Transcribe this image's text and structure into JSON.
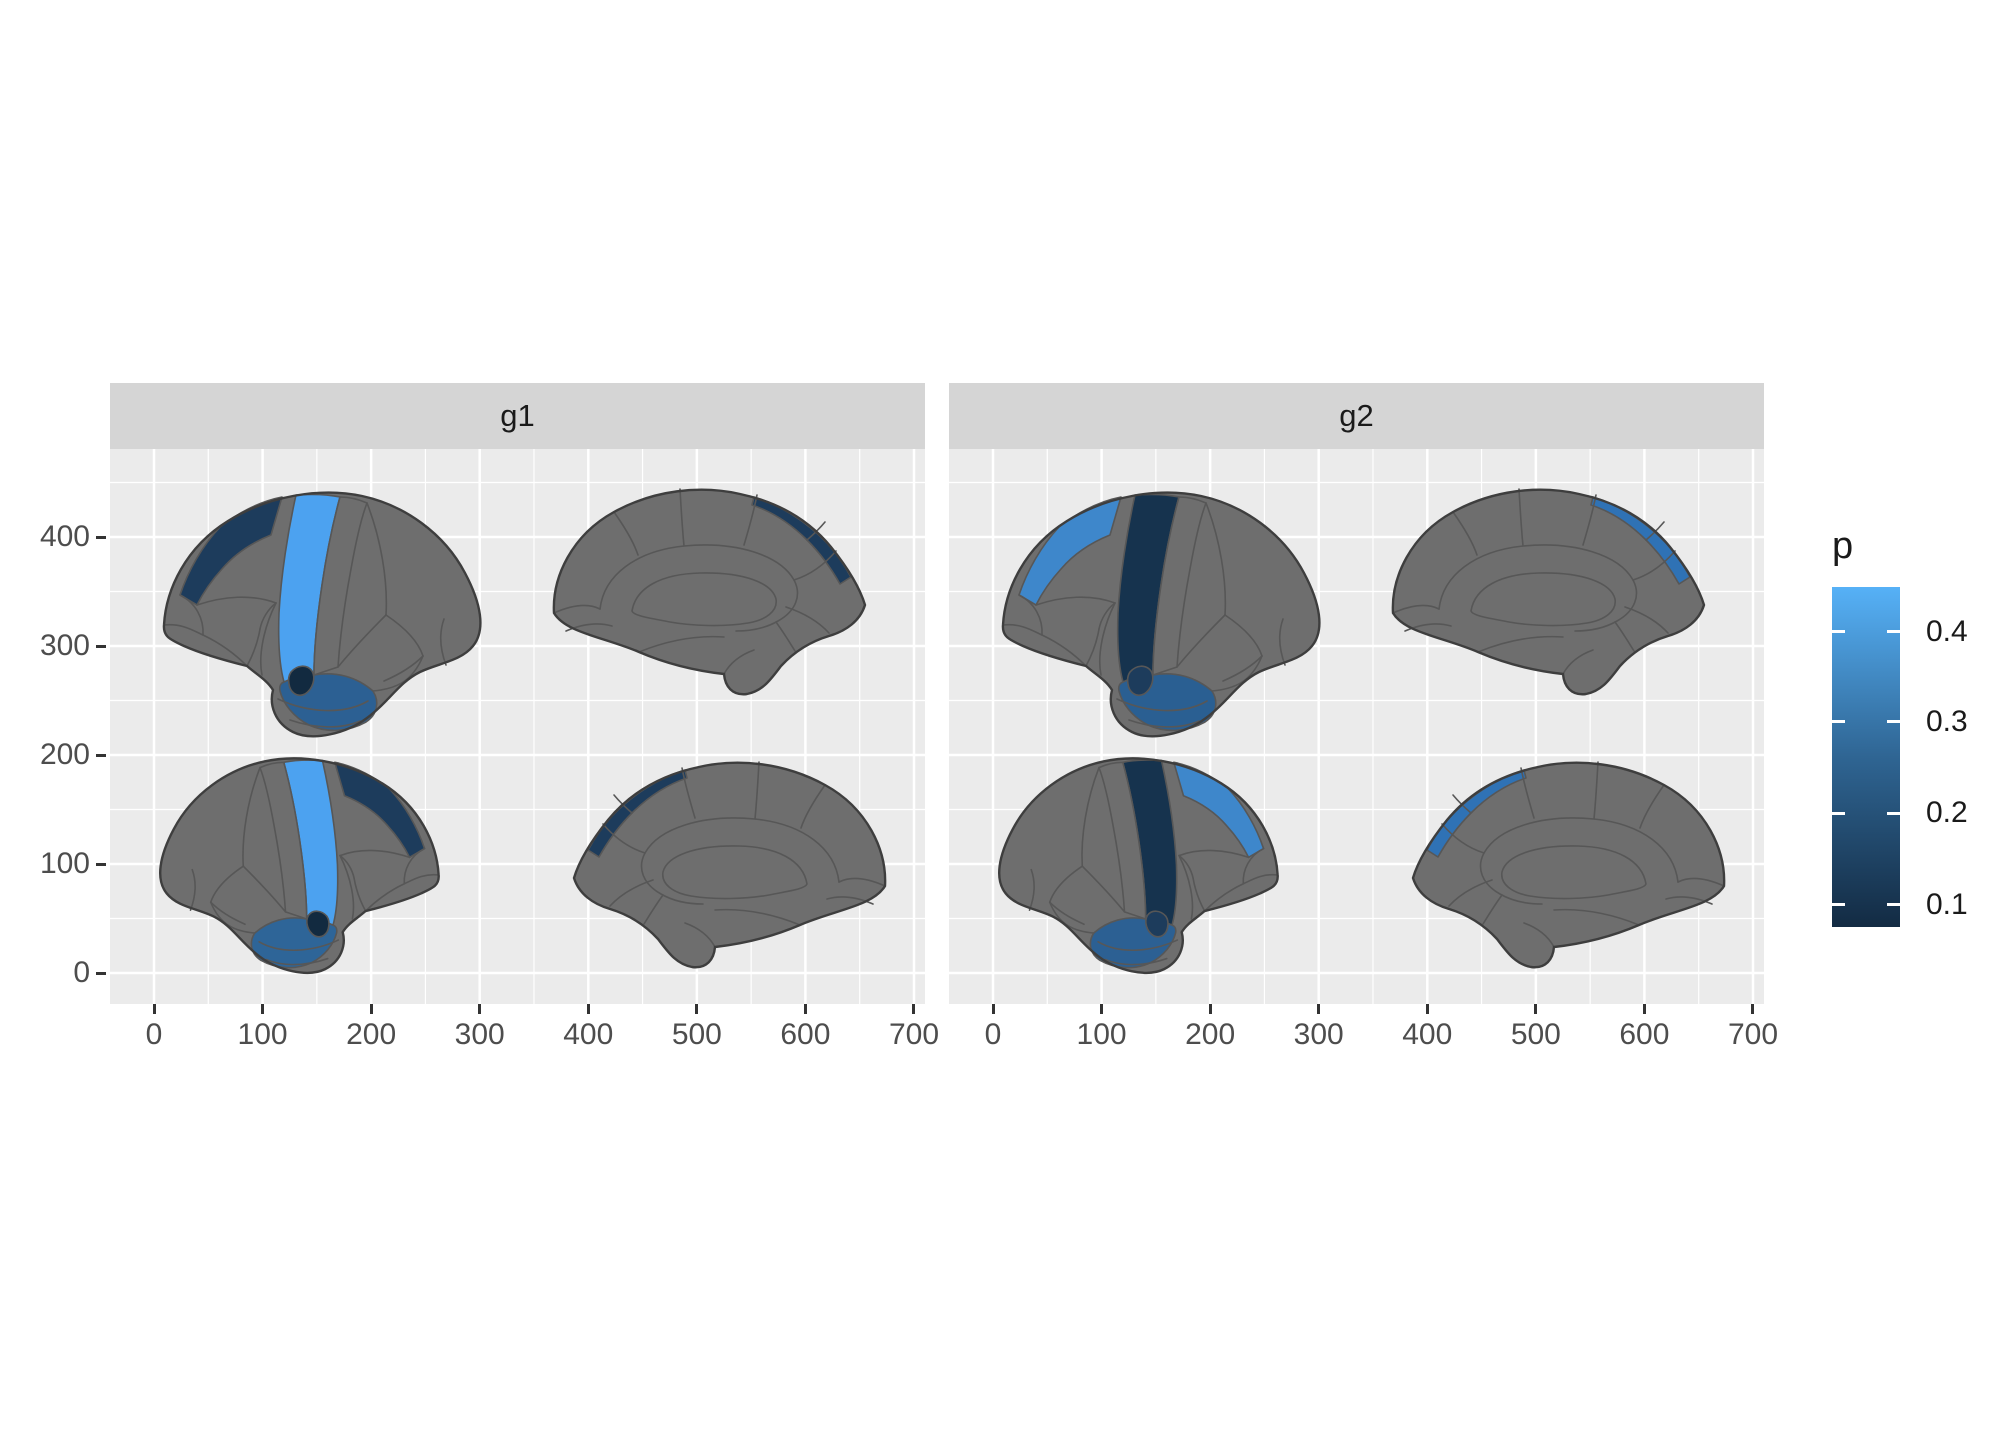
{
  "figure": {
    "background": "#FFFFFF"
  },
  "facets": [
    {
      "label": "g1"
    },
    {
      "label": "g2"
    }
  ],
  "axes": {
    "x_tick_labels": [
      "0",
      "100",
      "200",
      "300",
      "400",
      "500",
      "600",
      "700"
    ],
    "y_tick_labels": [
      "400",
      "300",
      "200",
      "100",
      "0"
    ]
  },
  "legend": {
    "title": "p",
    "tick_labels": [
      "0.4",
      "0.3",
      "0.2",
      "0.1"
    ],
    "tick_fractions_from_top": [
      0.132,
      0.397,
      0.665,
      0.935
    ],
    "gradient_top_color": "#56B1F7",
    "gradient_mid_color": "#2F6593",
    "gradient_bottom_color": "#132B43"
  },
  "colors": {
    "panel_bg": "#EBEBEB",
    "strip_bg": "#D5D5D5",
    "grid_major": "#FFFFFF",
    "grid_minor": "#FFFFFF",
    "axis_text": "#4D4D4D",
    "tick_mark": "#333333",
    "strip_text": "#1A1A1A",
    "legend_text": "#1A1A1A",
    "brain_fill": "#6E6E6E",
    "brain_outline": "#3E3E3E",
    "brain_sulci": "#575757"
  },
  "chart_data": {
    "type": "brain-region choropleth (ggseg-style cortical atlas), faceted",
    "facets": [
      "g1",
      "g2"
    ],
    "views_per_facet": [
      "left-lateral",
      "left-medial",
      "right-lateral",
      "right-medial"
    ],
    "fill_variable": "p",
    "fill_scale": {
      "low": 0.07,
      "high": 0.45,
      "low_color": "#132B43",
      "high_color": "#56B1F7",
      "legend_ticks": [
        0.1,
        0.2,
        0.3,
        0.4
      ]
    },
    "x_ticks": [
      0,
      100,
      200,
      300,
      400,
      500,
      600,
      700
    ],
    "y_ticks": [
      0,
      100,
      200,
      300,
      400
    ],
    "grid": true,
    "legend_position": "right",
    "region_fills": {
      "g1": {
        "left-lateral": {
          "corner_patch": {
            "p": 0.13,
            "color": "#1D3C5C"
          },
          "central_strip": {
            "p": 0.42,
            "color": "#4CA2F0"
          },
          "temporal_region": {
            "p": 0.22,
            "color": "#2C6093"
          },
          "insula_spot": {
            "p": 0.08,
            "color": "#122A40"
          }
        },
        "left-medial": {
          "medial_sliver": {
            "p": 0.13,
            "color": "#1D3C5C"
          }
        },
        "right-lateral": {
          "corner_patch": {
            "p": 0.13,
            "color": "#1D3C5C"
          },
          "central_strip": {
            "p": 0.42,
            "color": "#4CA2F0"
          },
          "temporal_region": {
            "p": 0.23,
            "color": "#2E6598"
          },
          "insula_spot": {
            "p": 0.08,
            "color": "#122A40"
          }
        },
        "right-medial": {
          "medial_sliver": {
            "p": 0.13,
            "color": "#1D3C5C"
          }
        }
      },
      "g2": {
        "left-lateral": {
          "corner_patch": {
            "p": 0.32,
            "color": "#3E87CB"
          },
          "central_strip": {
            "p": 0.1,
            "color": "#16334E"
          },
          "temporal_region": {
            "p": 0.21,
            "color": "#2A5F92"
          },
          "insula_spot": {
            "p": 0.13,
            "color": "#1D3C5C"
          }
        },
        "left-medial": {
          "medial_sliver": {
            "p": 0.26,
            "color": "#2F72B5"
          }
        },
        "right-lateral": {
          "corner_patch": {
            "p": 0.32,
            "color": "#3E87CB"
          },
          "central_strip": {
            "p": 0.1,
            "color": "#16334E"
          },
          "temporal_region": {
            "p": 0.22,
            "color": "#2C6093"
          },
          "insula_spot": {
            "p": 0.13,
            "color": "#1D3C5C"
          }
        },
        "right-medial": {
          "medial_sliver": {
            "p": 0.26,
            "color": "#2F72B5"
          }
        }
      }
    }
  }
}
